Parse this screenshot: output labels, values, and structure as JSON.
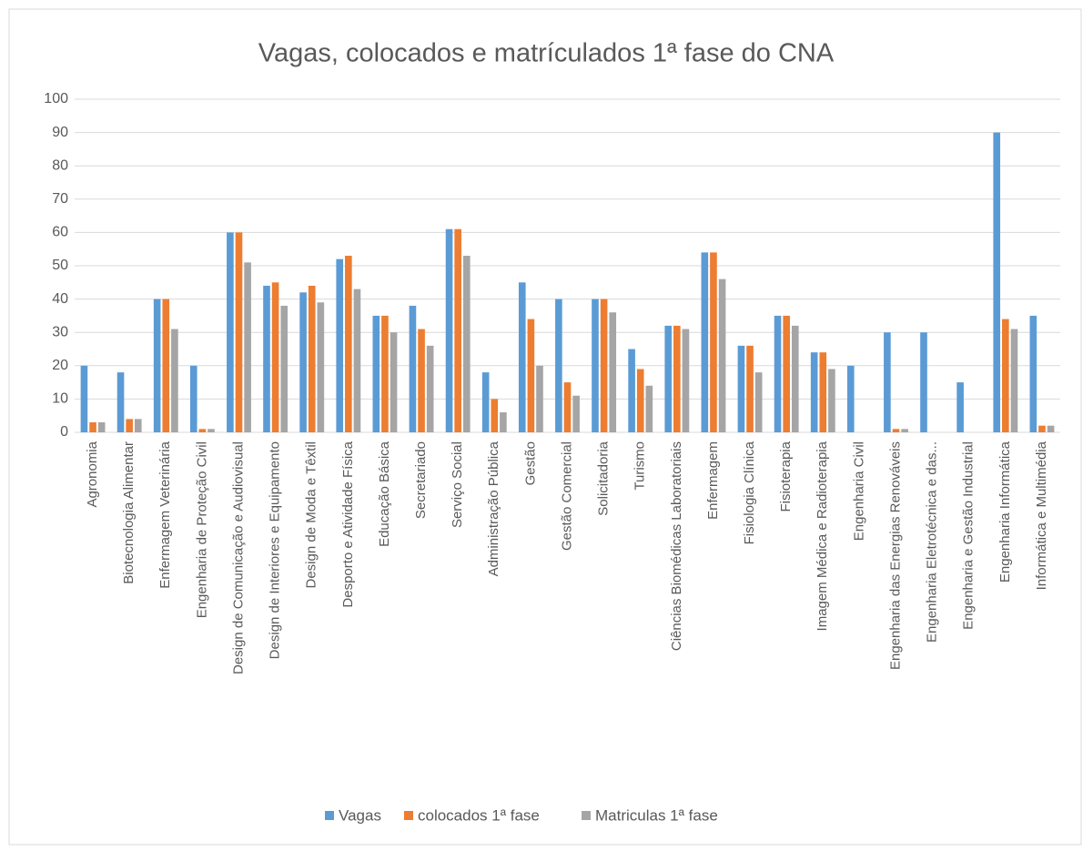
{
  "chart_data": {
    "type": "bar",
    "title": "Vagas, colocados e matrículados 1ª fase do CNA",
    "categories": [
      "Agronomia",
      "Biotecnologia Alimentar",
      "Enfermagem Veterinária",
      "Engenharia de Proteção Civil",
      "Design de Comunicação e Audiovisual",
      "Design de Interiores e Equipamento",
      "Design de Moda e Têxtil",
      "Desporto e Atividade Física",
      "Educação Básica",
      "Secretariado",
      "Serviço Social",
      "Administração Pública",
      "Gestão",
      "Gestão Comercial",
      "Solicitadoria",
      "Turismo",
      "Ciências Biomédicas Laboratoriais",
      "Enfermagem",
      "Fisiologia Clínica",
      "Fisioterapia",
      "Imagem Médica e Radioterapia",
      "Engenharia Civil",
      "Engenharia das Energias Renováveis",
      "Engenharia Eletrotécnica e das...",
      "Engenharia e Gestão Industrial",
      "Engenharia Informática",
      "Informática e Multimédia"
    ],
    "series": [
      {
        "name": "Vagas",
        "color": "#5b9bd5",
        "values": [
          20,
          18,
          40,
          20,
          60,
          44,
          42,
          52,
          35,
          38,
          61,
          18,
          45,
          40,
          40,
          25,
          32,
          54,
          26,
          35,
          24,
          20,
          30,
          30,
          15,
          90,
          35
        ]
      },
      {
        "name": "colocados 1ª fase",
        "color": "#ed7d31",
        "values": [
          3,
          4,
          40,
          1,
          60,
          45,
          44,
          53,
          35,
          31,
          61,
          10,
          34,
          15,
          40,
          19,
          32,
          54,
          26,
          35,
          24,
          0,
          1,
          0,
          0,
          34,
          2
        ]
      },
      {
        "name": "Matriculas 1ª fase",
        "color": "#a5a5a5",
        "values": [
          3,
          4,
          31,
          1,
          51,
          38,
          39,
          43,
          30,
          26,
          53,
          6,
          20,
          11,
          36,
          14,
          31,
          46,
          18,
          32,
          19,
          0,
          1,
          0,
          0,
          31,
          2
        ]
      }
    ],
    "ylim": [
      0,
      100
    ],
    "yticks": [
      0,
      10,
      20,
      30,
      40,
      50,
      60,
      70,
      80,
      90,
      100
    ],
    "grid": true,
    "legend": "bottom"
  }
}
